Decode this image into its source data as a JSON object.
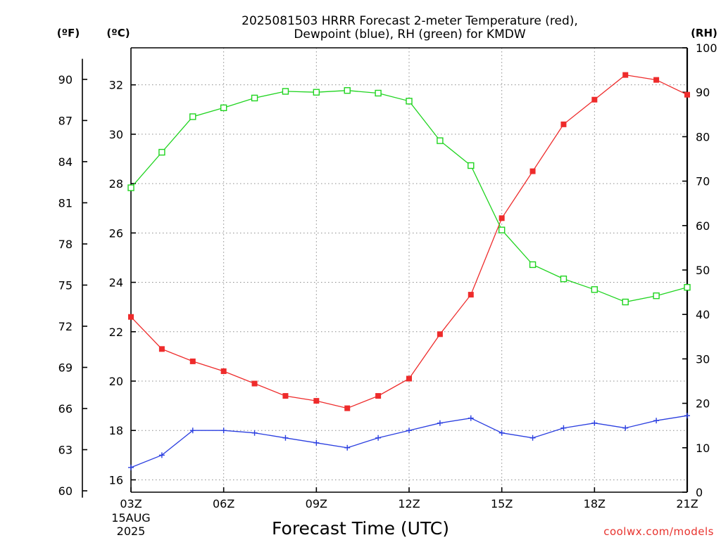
{
  "chart_data": {
    "type": "line",
    "title_line1": "2025081503 HRRR Forecast 2-meter Temperature (red),",
    "title_line2": "Dewpoint (blue), RH (green) for KMDW",
    "xlabel": "Forecast Time (UTC)",
    "credit": "coolwx.com/models",
    "units": {
      "fahrenheit": "(ºF)",
      "celsius": "(ºC)",
      "rh": "(RH)"
    },
    "x": [
      3,
      4,
      5,
      6,
      7,
      8,
      9,
      10,
      11,
      12,
      13,
      14,
      15,
      16,
      17,
      18,
      19,
      20,
      21
    ],
    "x_ticks": [
      {
        "x": 3,
        "label": "03Z",
        "sub1": "15AUG",
        "sub2": "2025"
      },
      {
        "x": 6,
        "label": "06Z"
      },
      {
        "x": 9,
        "label": "09Z"
      },
      {
        "x": 12,
        "label": "12Z"
      },
      {
        "x": 15,
        "label": "15Z"
      },
      {
        "x": 18,
        "label": "18Z"
      },
      {
        "x": 21,
        "label": "21Z"
      }
    ],
    "xlim": [
      3,
      21
    ],
    "ylim_celsius": [
      15.5,
      33.5
    ],
    "ylim_rh": [
      0,
      100
    ],
    "celsius_ticks": [
      16,
      18,
      20,
      22,
      24,
      26,
      28,
      30,
      32
    ],
    "fahrenheit_ticks": [
      60,
      63,
      66,
      69,
      72,
      75,
      78,
      81,
      84,
      87,
      90
    ],
    "rh_ticks": [
      0,
      10,
      20,
      30,
      40,
      50,
      60,
      70,
      80,
      90,
      100
    ],
    "grid": true,
    "series": [
      {
        "color": "#ee2b2b",
        "marker": "filled-square",
        "axis": "celsius",
        "values": [
          22.6,
          21.3,
          20.8,
          20.4,
          19.9,
          19.4,
          19.2,
          18.9,
          19.4,
          20.1,
          21.9,
          23.5,
          26.6,
          28.5,
          30.4,
          31.4,
          32.4,
          32.2,
          31.6
        ]
      },
      {
        "color": "#2b3fe0",
        "marker": "plus",
        "axis": "celsius",
        "values": [
          16.5,
          17.0,
          18.0,
          18.0,
          17.9,
          17.7,
          17.5,
          17.3,
          17.7,
          18.0,
          18.3,
          18.5,
          17.9,
          17.7,
          18.1,
          18.3,
          18.1,
          18.4,
          18.6
        ]
      },
      {
        "color": "#1fd41f",
        "marker": "open-square",
        "axis": "rh",
        "values": [
          68.5,
          76.5,
          84.5,
          86.5,
          88.7,
          90.2,
          90.0,
          90.4,
          89.8,
          88.0,
          79.1,
          73.5,
          59.0,
          51.2,
          48.0,
          45.6,
          42.8,
          44.2,
          46.1
        ]
      }
    ]
  }
}
